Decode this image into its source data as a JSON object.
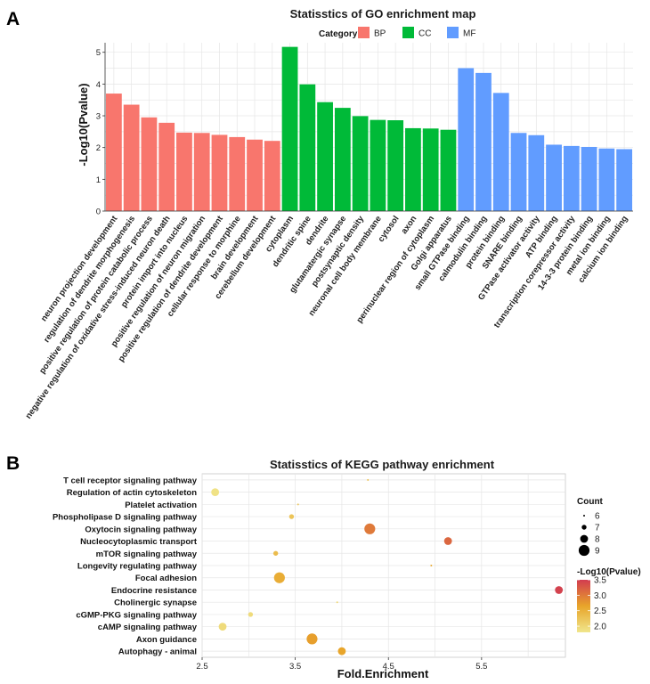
{
  "panel_a_label": "A",
  "panel_b_label": "B",
  "chart_data": [
    {
      "type": "bar",
      "title": "Statisstics of GO enrichment map",
      "ylabel": "-Log10(Pvalue)",
      "xlabel": "",
      "ylim": [
        0,
        5.3
      ],
      "yticks": [
        0,
        1,
        2,
        3,
        4,
        5
      ],
      "grid": true,
      "legend_title": "Category",
      "legend_position": "top",
      "series": [
        {
          "name": "BP",
          "color": "#F8766D",
          "categories": [
            "neuron projection development",
            "regulation of dendrite morphogenesis",
            "positive regulation of protein catabolic process",
            "negative regulation of oxidative stress-induced neuron death",
            "protein import into nucleus",
            "positive regulation of neuron migration",
            "positive regulation of dendrite development",
            "cellular response to morphine",
            "brain development",
            "cerebellum development"
          ],
          "values": [
            3.7,
            3.35,
            2.95,
            2.78,
            2.47,
            2.46,
            2.4,
            2.33,
            2.25,
            2.21
          ]
        },
        {
          "name": "CC",
          "color": "#00BA38",
          "categories": [
            "cytoplasm",
            "dendritic spine",
            "dendrite",
            "glutamatergic synapse",
            "postsynaptic density",
            "neuronal cell body membrane",
            "cytosol",
            "axon",
            "perinuclear region of cytoplasm",
            "Golgi apparatus"
          ],
          "values": [
            5.17,
            3.99,
            3.43,
            3.25,
            2.99,
            2.87,
            2.86,
            2.61,
            2.6,
            2.56
          ]
        },
        {
          "name": "MF",
          "color": "#619CFF",
          "categories": [
            "small GTPase binding",
            "calmodulin binding",
            "protein binding",
            "SNARE binding",
            "GTPase activator activity",
            "ATP binding",
            "transcription corepressor activity",
            "14-3-3 protein binding",
            "metal ion binding",
            "calcium ion binding"
          ],
          "values": [
            4.5,
            4.35,
            3.72,
            2.46,
            2.39,
            2.09,
            2.05,
            2.02,
            1.97,
            1.95
          ]
        }
      ]
    },
    {
      "type": "scatter",
      "title": "Statisstics of KEGG pathway enrichment",
      "xlabel": "Fold.Enrichment",
      "ylabel": "",
      "xlim": [
        2.5,
        6.4
      ],
      "xticks": [
        "2.5",
        "3.5",
        "4.5",
        "5.5"
      ],
      "grid": true,
      "categories": [
        "T cell receptor signaling pathway",
        "Regulation of actin cytoskeleton",
        "Platelet activation",
        "Phospholipase D signaling pathway",
        "Oxytocin signaling pathway",
        "Nucleocytoplasmic transport",
        "mTOR signaling pathway",
        "Longevity regulating pathway",
        "Focal adhesion",
        "Endocrine resistance",
        "Cholinergic synapse",
        "cGMP-PKG signaling pathway",
        "cAMP signaling pathway",
        "Axon guidance",
        "Autophagy - animal"
      ],
      "x": [
        4.28,
        2.64,
        3.53,
        3.46,
        4.3,
        5.14,
        3.29,
        4.96,
        3.33,
        6.33,
        3.95,
        3.02,
        2.72,
        3.68,
        4.0
      ],
      "count": [
        6,
        8,
        6,
        7,
        9,
        8,
        7,
        6,
        9,
        8,
        6,
        7,
        8,
        9,
        8
      ],
      "neglog10p": [
        2.3,
        1.85,
        2.2,
        2.25,
        3.0,
        3.15,
        2.35,
        2.6,
        2.55,
        3.45,
        2.0,
        1.95,
        1.95,
        2.7,
        2.65
      ],
      "size_legend_title": "Count",
      "size_legend": [
        "6",
        "7",
        "8",
        "9"
      ],
      "color_legend_title": "-Log10(Pvalue)",
      "color_legend_ticks": [
        "3.5",
        "3.0",
        "2.5",
        "2.0"
      ],
      "color_scale": [
        "#F0E68C",
        "#E8A52A",
        "#D23C50"
      ]
    }
  ]
}
